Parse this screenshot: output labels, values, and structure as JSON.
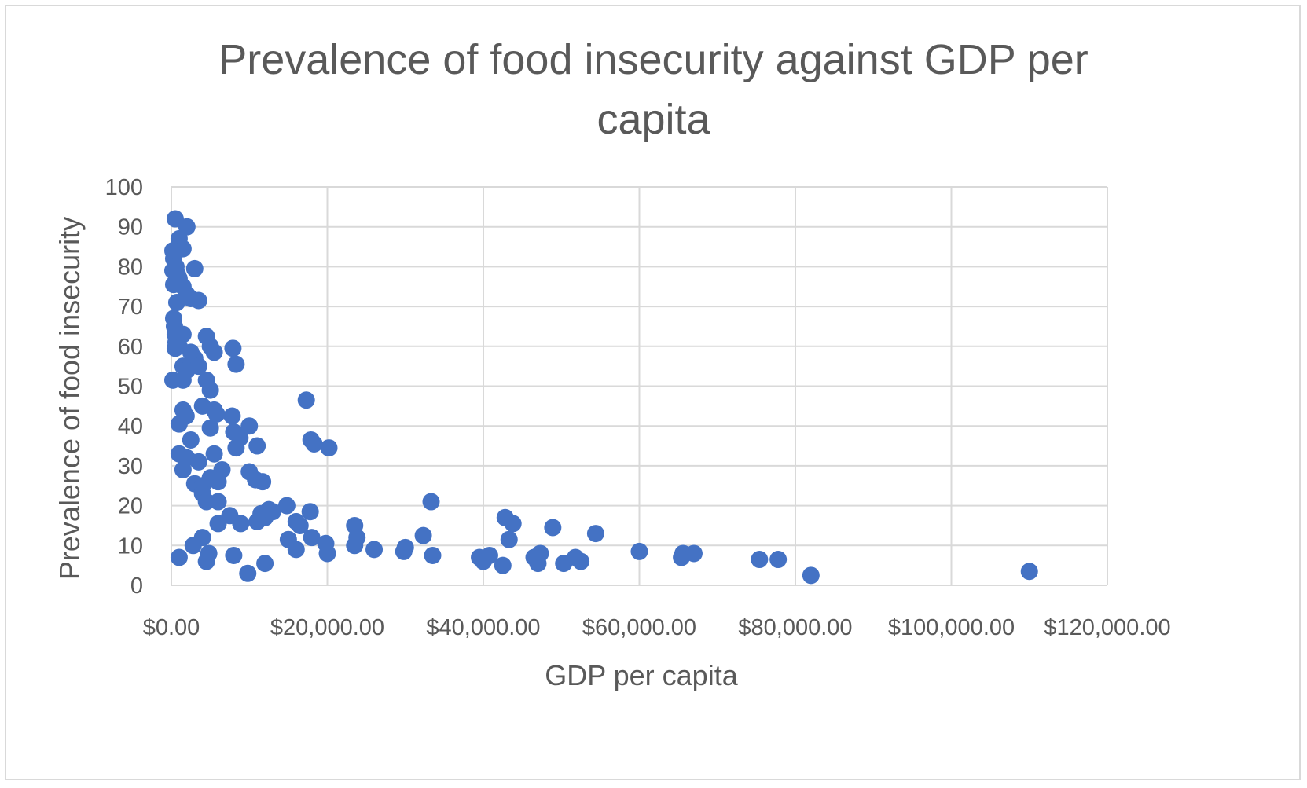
{
  "chart_data": {
    "type": "scatter",
    "title_lines": [
      "Prevalence of food insecurity against GDP per",
      "capita"
    ],
    "xlabel": "GDP per capita",
    "ylabel": "Prevalence of food insecurity",
    "xlim": [
      0,
      120000
    ],
    "ylim": [
      0,
      100
    ],
    "x_ticks": [
      0,
      20000,
      40000,
      60000,
      80000,
      100000,
      120000
    ],
    "x_tick_labels": [
      "$0.00",
      "$20,000.00",
      "$40,000.00",
      "$60,000.00",
      "$80,000.00",
      "$100,000.00",
      "$120,000.00"
    ],
    "y_ticks": [
      0,
      10,
      20,
      30,
      40,
      50,
      60,
      70,
      80,
      90,
      100
    ],
    "y_tick_labels": [
      "0",
      "10",
      "20",
      "30",
      "40",
      "50",
      "60",
      "70",
      "80",
      "90",
      "100"
    ],
    "grid": true,
    "legend": "none",
    "marker_color": "#4472c4",
    "points": [
      [
        500,
        92
      ],
      [
        1000,
        87
      ],
      [
        2000,
        90
      ],
      [
        1500,
        84.5
      ],
      [
        200,
        84
      ],
      [
        300,
        82
      ],
      [
        600,
        80
      ],
      [
        800,
        78
      ],
      [
        200,
        79
      ],
      [
        1000,
        77
      ],
      [
        300,
        75.5
      ],
      [
        1500,
        75
      ],
      [
        700,
        71
      ],
      [
        2000,
        73
      ],
      [
        2500,
        72
      ],
      [
        3000,
        79.5
      ],
      [
        3500,
        71.5
      ],
      [
        300,
        67
      ],
      [
        400,
        65
      ],
      [
        500,
        63
      ],
      [
        600,
        61
      ],
      [
        1000,
        60
      ],
      [
        500,
        59.5
      ],
      [
        1500,
        63
      ],
      [
        2500,
        58.5
      ],
      [
        3000,
        57
      ],
      [
        1500,
        55
      ],
      [
        2000,
        54
      ],
      [
        3500,
        55
      ],
      [
        200,
        51.5
      ],
      [
        1500,
        51.5
      ],
      [
        4500,
        51.5
      ],
      [
        5000,
        49
      ],
      [
        4500,
        62.5
      ],
      [
        5000,
        60
      ],
      [
        5500,
        58.5
      ],
      [
        7900,
        59.5
      ],
      [
        8300,
        55.5
      ],
      [
        4000,
        45
      ],
      [
        5500,
        44
      ],
      [
        5800,
        43
      ],
      [
        7800,
        42.5
      ],
      [
        10000,
        40
      ],
      [
        1500,
        44
      ],
      [
        1900,
        42.5
      ],
      [
        1000,
        40.5
      ],
      [
        5000,
        39.5
      ],
      [
        8000,
        38.5
      ],
      [
        8800,
        37
      ],
      [
        8300,
        34.5
      ],
      [
        2500,
        36.5
      ],
      [
        11000,
        35
      ],
      [
        17300,
        46.5
      ],
      [
        17900,
        36.5
      ],
      [
        18300,
        35.5
      ],
      [
        20200,
        34.5
      ],
      [
        1000,
        33
      ],
      [
        2000,
        32
      ],
      [
        3500,
        31
      ],
      [
        5500,
        33
      ],
      [
        6500,
        29
      ],
      [
        1500,
        29
      ],
      [
        10000,
        28.5
      ],
      [
        10800,
        26.5
      ],
      [
        11700,
        26
      ],
      [
        3000,
        25.5
      ],
      [
        4000,
        25
      ],
      [
        5000,
        27
      ],
      [
        6000,
        26
      ],
      [
        4000,
        23
      ],
      [
        4500,
        21
      ],
      [
        6000,
        21
      ],
      [
        7500,
        17.5
      ],
      [
        6000,
        15.5
      ],
      [
        8900,
        15.5
      ],
      [
        11000,
        16
      ],
      [
        11500,
        18
      ],
      [
        12000,
        17
      ],
      [
        12500,
        19
      ],
      [
        13000,
        18.5
      ],
      [
        14800,
        20
      ],
      [
        16000,
        16
      ],
      [
        16500,
        15
      ],
      [
        17800,
        18.5
      ],
      [
        23500,
        15
      ],
      [
        23800,
        12
      ],
      [
        15000,
        11.5
      ],
      [
        16000,
        9
      ],
      [
        18000,
        12
      ],
      [
        19800,
        10.5
      ],
      [
        20000,
        8
      ],
      [
        23500,
        10
      ],
      [
        26000,
        9
      ],
      [
        29800,
        8.5
      ],
      [
        30000,
        9.5
      ],
      [
        32300,
        12.5
      ],
      [
        33300,
        21
      ],
      [
        33500,
        7.5
      ],
      [
        39500,
        7
      ],
      [
        40000,
        6
      ],
      [
        40800,
        7.5
      ],
      [
        42500,
        5
      ],
      [
        42800,
        17
      ],
      [
        43300,
        11.5
      ],
      [
        43800,
        15.5
      ],
      [
        46500,
        7
      ],
      [
        47000,
        5.5
      ],
      [
        47300,
        8
      ],
      [
        48900,
        14.5
      ],
      [
        50300,
        5.5
      ],
      [
        51800,
        7
      ],
      [
        52500,
        6
      ],
      [
        54400,
        13
      ],
      [
        60000,
        8.5
      ],
      [
        65400,
        7
      ],
      [
        65600,
        8
      ],
      [
        67000,
        8
      ],
      [
        75400,
        6.5
      ],
      [
        77800,
        6.5
      ],
      [
        82000,
        2.5
      ],
      [
        110000,
        3.5
      ],
      [
        1000,
        7
      ],
      [
        2800,
        10
      ],
      [
        4000,
        12
      ],
      [
        4500,
        6
      ],
      [
        4800,
        8
      ],
      [
        8000,
        7.5
      ],
      [
        9800,
        3
      ],
      [
        12000,
        5.5
      ]
    ]
  }
}
